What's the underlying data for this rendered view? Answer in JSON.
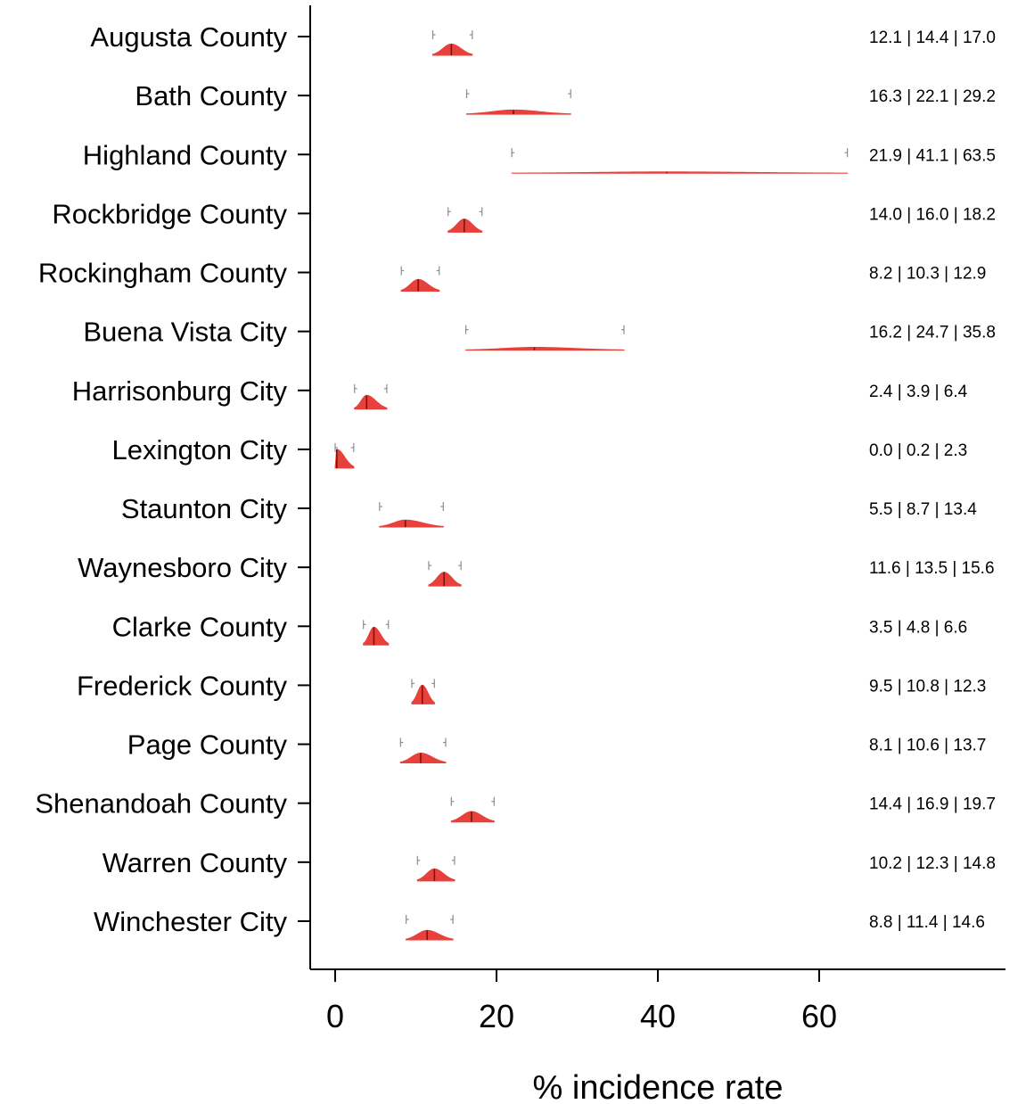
{
  "chart_data": {
    "type": "violin-interval",
    "xlabel": "% incidence rate",
    "xticks": [
      0,
      20,
      40,
      60
    ],
    "xlim": [
      -3,
      83
    ],
    "grid": false,
    "legend": "none",
    "colors": {
      "fill": "#e8403a",
      "median": "#7a1410",
      "bracket": "#8c8c8c",
      "axis": "#000000"
    },
    "categories": [
      "Augusta County",
      "Bath County",
      "Highland County",
      "Rockbridge County",
      "Rockingham County",
      "Buena Vista City",
      "Harrisonburg City",
      "Lexington City",
      "Staunton City",
      "Waynesboro City",
      "Clarke County",
      "Frederick County",
      "Page County",
      "Shenandoah County",
      "Warren County",
      "Winchester City"
    ],
    "lower": [
      12.1,
      16.3,
      21.9,
      14.0,
      8.2,
      16.2,
      2.4,
      0.0,
      5.5,
      11.6,
      3.5,
      9.5,
      8.1,
      14.4,
      10.2,
      8.8
    ],
    "median": [
      14.4,
      22.1,
      41.1,
      16.0,
      10.3,
      24.7,
      3.9,
      0.2,
      8.7,
      13.5,
      4.8,
      10.8,
      10.6,
      16.9,
      12.3,
      11.4
    ],
    "upper": [
      17.0,
      29.2,
      63.5,
      18.2,
      12.9,
      35.8,
      6.4,
      2.3,
      13.4,
      15.6,
      6.6,
      12.3,
      13.7,
      19.7,
      14.8,
      14.6
    ],
    "interval_labels": [
      "12.1 | 14.4 | 17.0",
      "16.3 | 22.1 | 29.2",
      "21.9 | 41.1 | 63.5",
      "14.0 | 16.0 | 18.2",
      "8.2 | 10.3 | 12.9",
      "16.2 | 24.7 | 35.8",
      "2.4 | 3.9 | 6.4",
      "0.0 | 0.2 | 2.3",
      "5.5 | 8.7 | 13.4",
      "11.6 | 13.5 | 15.6",
      "3.5 | 4.8 | 6.6",
      "9.5 | 10.8 | 12.3",
      "8.1 | 10.6 | 13.7",
      "14.4 | 16.9 | 19.7",
      "10.2 | 12.3 | 14.8",
      "8.8 | 11.4 | 14.6"
    ]
  }
}
